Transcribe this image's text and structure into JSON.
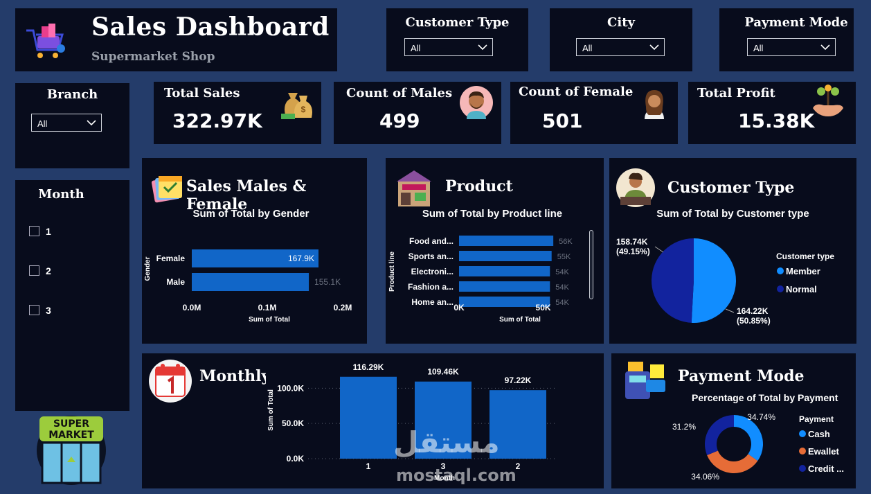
{
  "header": {
    "title": "Sales Dashboard",
    "subtitle": "Supermarket Shop"
  },
  "filters": {
    "customer_type": {
      "label": "Customer Type",
      "value": "All"
    },
    "city": {
      "label": "City",
      "value": "All"
    },
    "payment_mode": {
      "label": "Payment Mode",
      "value": "All"
    },
    "branch": {
      "label": "Branch",
      "value": "All"
    }
  },
  "month_slicer": {
    "title": "Month",
    "items": [
      "1",
      "2",
      "3"
    ]
  },
  "kpis": {
    "total_sales": {
      "label": "Total Sales",
      "value": "322.97K"
    },
    "count_males": {
      "label": "Count of Males",
      "value": "499"
    },
    "count_female": {
      "label": "Count of Female",
      "value": "501"
    },
    "total_profit": {
      "label": "Total Profit",
      "value": "15.38K"
    }
  },
  "sections": {
    "gender": {
      "header": "Sales Males & Female"
    },
    "product": {
      "header": "Product"
    },
    "customer_type": {
      "header": "Customer Type"
    },
    "monthly": {
      "header": "Monthly"
    },
    "payment": {
      "header": "Payment Mode"
    }
  },
  "logo": {
    "line1": "SUPER",
    "line2": "MARKET"
  },
  "watermark": {
    "arabic": "مستقل",
    "latin": "mostaql.com"
  },
  "colors": {
    "bar": "#1166c8",
    "member": "#118dff",
    "normal": "#12239e",
    "cash": "#118dff",
    "ewallet": "#e66c37",
    "credit": "#12239e"
  },
  "chart_data": [
    {
      "type": "bar",
      "title": "Sum of Total by Gender",
      "xlabel": "Sum of Total",
      "ylabel": "Gender",
      "categories": [
        "Female",
        "Male"
      ],
      "values": [
        167.9,
        155.1
      ],
      "value_labels": [
        "167.9K",
        "155.1K"
      ],
      "xticks": [
        "0.0M",
        "0.1M",
        "0.2M"
      ],
      "xlim": [
        0,
        200
      ]
    },
    {
      "type": "bar",
      "title": "Sum of Total by Product line",
      "xlabel": "Sum of Total",
      "ylabel": "Product line",
      "categories": [
        "Food and...",
        "Sports an...",
        "Electroni...",
        "Fashion a...",
        "Home an..."
      ],
      "values": [
        56,
        55,
        54,
        54,
        54
      ],
      "value_labels": [
        "56K",
        "55K",
        "54K",
        "54K",
        "54K"
      ],
      "xticks": [
        "0K",
        "50K"
      ],
      "xlim": [
        0,
        58
      ]
    },
    {
      "type": "pie",
      "title": "Sum of Total by Customer type",
      "legend_title": "Customer type",
      "categories": [
        "Member",
        "Normal"
      ],
      "values": [
        164.22,
        158.74
      ],
      "value_labels": [
        "164.22K\n(50.85%)",
        "158.74K\n(49.15%)"
      ]
    },
    {
      "type": "bar",
      "title": "Monthly",
      "xlabel": "Month",
      "ylabel": "Sum of Total",
      "categories": [
        "1",
        "3",
        "2"
      ],
      "values": [
        116.29,
        109.46,
        97.22
      ],
      "value_labels": [
        "116.29K",
        "109.46K",
        "97.22K"
      ],
      "yticks": [
        "0.0K",
        "50.0K",
        "100.0K"
      ],
      "ylim": [
        0,
        120
      ]
    },
    {
      "type": "pie",
      "title": "Percentage of Total by Payment",
      "legend_title": "Payment",
      "categories": [
        "Cash",
        "Ewallet",
        "Credit ..."
      ],
      "values": [
        34.74,
        34.06,
        31.2
      ],
      "value_labels": [
        "34.74%",
        "34.06%",
        "31.2%"
      ]
    }
  ]
}
